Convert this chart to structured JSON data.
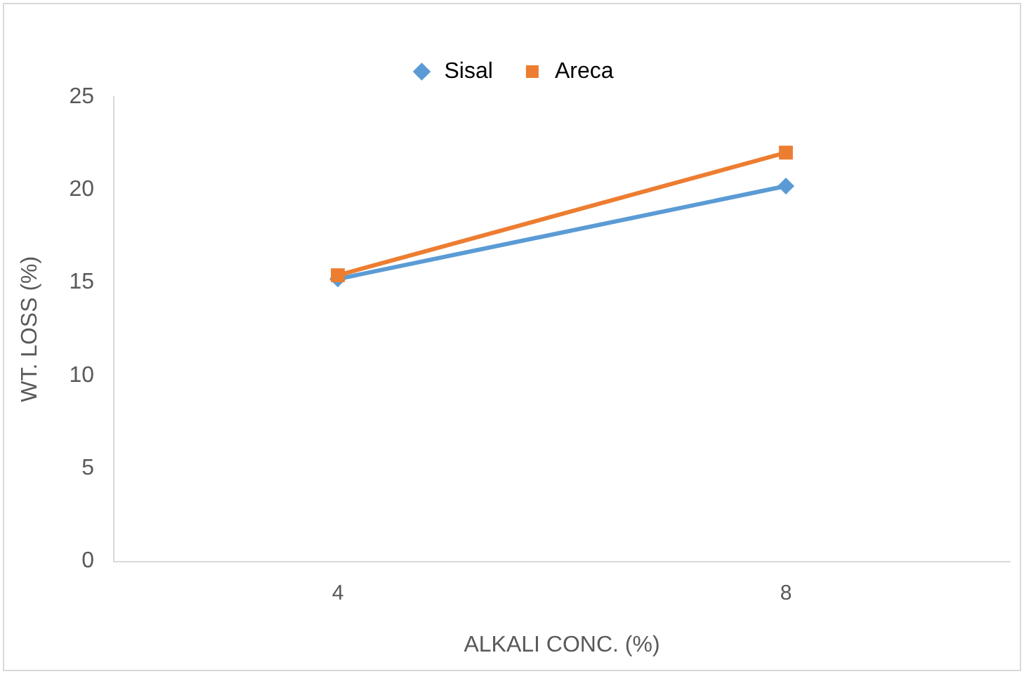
{
  "chart_data": {
    "type": "line",
    "xlabel": "ALKALI CONC. (%)",
    "ylabel": "WT. LOSS (%)",
    "categories": [
      "4",
      "8"
    ],
    "series": [
      {
        "name": "Sisal",
        "color": "#5b9bd5",
        "marker": "diamond",
        "values": [
          15.2,
          20.2
        ]
      },
      {
        "name": "Areca",
        "color": "#ed7d31",
        "marker": "square",
        "values": [
          15.4,
          22
        ]
      }
    ],
    "ylim": [
      0,
      25
    ],
    "yticks": [
      0,
      5,
      10,
      15,
      20,
      25
    ],
    "grid": false,
    "legend": "top"
  }
}
